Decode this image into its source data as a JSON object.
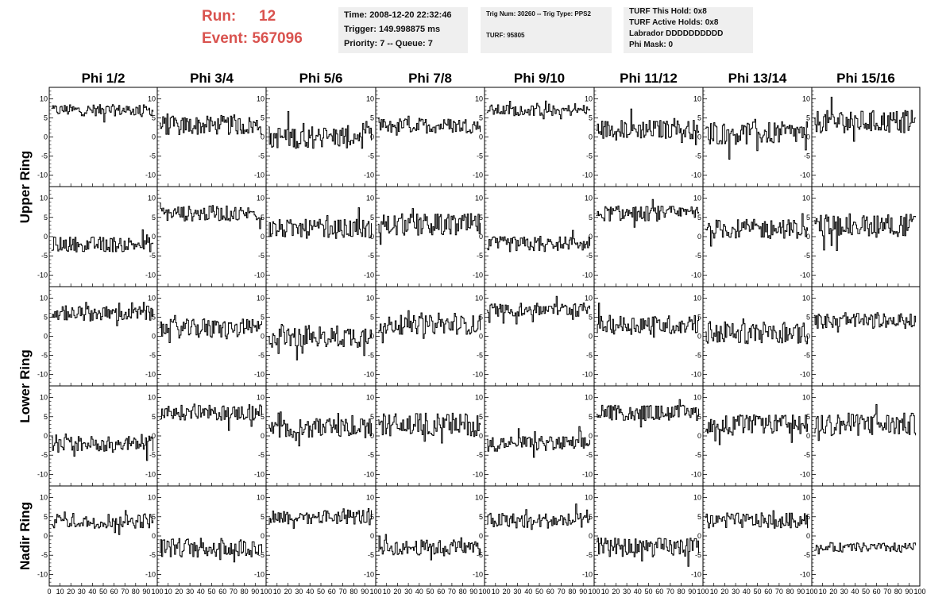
{
  "header": {
    "run_label": "Run:",
    "run_value": "12",
    "event_label": "Event:",
    "event_value": "567096",
    "accent_color": "#d9534f",
    "time_info": {
      "time": "Time: 2008-12-20 22:32:46",
      "trigger": "Trigger: 149.998875 ms",
      "priority": "Priority: 7 -- Queue: 7"
    },
    "trig_info": {
      "trig_num": "Trig Num: 30260 -- Trig Type: PPS2",
      "turf": "TURF: 95805"
    },
    "turf_info": {
      "this_hold": "TURF This Hold: 0x8",
      "active_holds": "TURF Active Holds: 0x8",
      "labrador": "Labrador DDDDDDDDDD",
      "phi_mask": "Phi Mask: 0"
    }
  },
  "chart_data": {
    "type": "line",
    "description_grid": "5 rows x 8 columns of waveform panels",
    "columns": [
      "Phi 1/2",
      "Phi 3/4",
      "Phi 5/6",
      "Phi 7/8",
      "Phi 9/10",
      "Phi 11/12",
      "Phi 13/14",
      "Phi 15/16"
    ],
    "rows": [
      "Upper Ring",
      "Lower Ring",
      "Nadir Ring"
    ],
    "xlim": [
      0,
      100
    ],
    "ylim": [
      -13,
      13
    ],
    "x_ticks": [
      "0",
      "10",
      "20",
      "30",
      "40",
      "50",
      "60",
      "70",
      "80",
      "90",
      "100"
    ],
    "y_ticks": [
      "10",
      "5",
      "0",
      "-5",
      "-10"
    ],
    "samples_per_trace": 96,
    "grid": false,
    "panel_levels": [
      [
        7,
        3,
        0,
        3,
        7,
        2,
        1,
        4
      ],
      [
        -2,
        6,
        2,
        3,
        -2,
        6,
        2,
        3
      ],
      [
        6,
        2,
        0,
        3,
        7,
        3,
        1,
        4
      ],
      [
        -2,
        6,
        2,
        3,
        -2,
        6,
        3,
        3
      ],
      [
        4,
        -3,
        5,
        -3,
        4,
        -3,
        4,
        -3
      ]
    ],
    "panel_spread": [
      [
        1.5,
        2.5,
        3,
        2,
        1.5,
        2.5,
        3,
        3
      ],
      [
        2,
        2,
        2.5,
        3,
        2,
        2,
        2.5,
        3
      ],
      [
        2,
        2.5,
        3,
        2.5,
        1.8,
        2.5,
        3,
        2
      ],
      [
        2,
        2,
        2.5,
        3,
        2,
        2,
        2.5,
        3
      ],
      [
        2,
        2.5,
        2,
        2,
        2,
        2.5,
        2,
        1.2
      ]
    ]
  }
}
